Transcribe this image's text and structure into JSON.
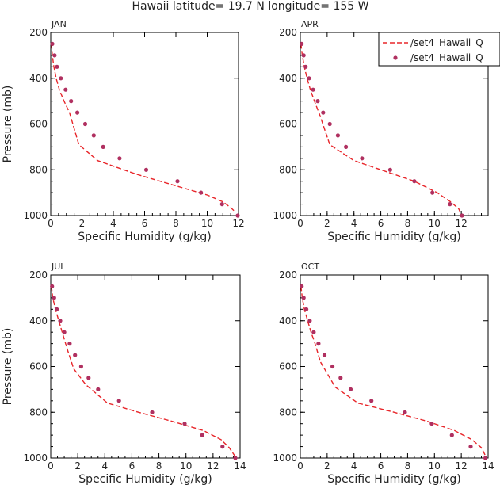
{
  "figure": {
    "title": "Hawaii  latitude= 19.7 N longitude= 155 W"
  },
  "legend": {
    "entries": [
      {
        "label": "/set4_Hawaii_Q_",
        "style": "dashed-line"
      },
      {
        "label": "/set4_Hawaii_Q_",
        "style": "dots"
      }
    ]
  },
  "colors": {
    "line": "#e8262a",
    "dots": "#b03060"
  },
  "chart_data": [
    {
      "type": "line",
      "title": "JAN",
      "xlabel": "Specific Humidity (g/kg)",
      "ylabel": "Pressure (mb)",
      "xlim": [
        0,
        12
      ],
      "ylim": [
        1000,
        200
      ],
      "xticks": [
        0,
        2,
        4,
        6,
        8,
        10,
        12
      ],
      "yticks": [
        200,
        400,
        600,
        800,
        1000
      ],
      "series": [
        {
          "name": "/set4_Hawaii_Q_",
          "kind": "line",
          "x": [
            0.05,
            0.1,
            0.2,
            0.35,
            0.55,
            0.85,
            1.2,
            1.8,
            3.0,
            5.5,
            8.0,
            10.0,
            11.0,
            11.5,
            11.8
          ],
          "y": [
            250,
            300,
            350,
            400,
            450,
            500,
            550,
            690,
            760,
            820,
            870,
            910,
            940,
            965,
            985
          ]
        },
        {
          "name": "/set4_Hawaii_Q_",
          "kind": "scatter",
          "x": [
            0.1,
            0.25,
            0.4,
            0.65,
            0.95,
            1.3,
            1.7,
            2.2,
            2.75,
            3.35,
            4.4,
            6.1,
            8.1,
            9.6,
            10.95,
            11.95
          ],
          "y": [
            250,
            300,
            350,
            400,
            450,
            500,
            550,
            600,
            650,
            700,
            750,
            800,
            850,
            900,
            950,
            1000
          ]
        }
      ]
    },
    {
      "type": "line",
      "title": "APR",
      "xlabel": "Specific Humidity (g/kg)",
      "ylabel": "Pressure (mb)",
      "xlim": [
        0,
        14
      ],
      "ylim": [
        1000,
        200
      ],
      "xticks": [
        0,
        2,
        4,
        6,
        8,
        10,
        12
      ],
      "yticks": [
        200,
        400,
        600,
        800,
        1000
      ],
      "series": [
        {
          "name": "/set4_Hawaii_Q_",
          "kind": "line",
          "x": [
            0.05,
            0.15,
            0.3,
            0.5,
            0.75,
            1.05,
            1.45,
            2.2,
            4.0,
            6.5,
            8.5,
            10.2,
            11.2,
            11.8,
            12.0
          ],
          "y": [
            250,
            300,
            350,
            400,
            450,
            500,
            560,
            690,
            760,
            810,
            850,
            900,
            940,
            970,
            995
          ]
        },
        {
          "name": "/set4_Hawaii_Q_",
          "kind": "scatter",
          "x": [
            0.1,
            0.25,
            0.4,
            0.65,
            0.95,
            1.3,
            1.7,
            2.2,
            2.8,
            3.4,
            4.6,
            6.7,
            8.5,
            9.85,
            11.15,
            12.05
          ],
          "y": [
            250,
            300,
            350,
            400,
            450,
            500,
            550,
            600,
            650,
            700,
            750,
            800,
            850,
            900,
            950,
            1000
          ]
        }
      ]
    },
    {
      "type": "line",
      "title": "JUL",
      "xlabel": "Specific Humidity (g/kg)",
      "ylabel": "Pressure (mb)",
      "xlim": [
        0,
        14
      ],
      "ylim": [
        1000,
        200
      ],
      "xticks": [
        0,
        2,
        4,
        6,
        8,
        10,
        12,
        14
      ],
      "yticks": [
        200,
        400,
        600,
        800,
        1000
      ],
      "series": [
        {
          "name": "/set4_Hawaii_Q_",
          "kind": "line",
          "x": [
            0.05,
            0.15,
            0.35,
            0.6,
            0.85,
            1.2,
            1.7,
            2.6,
            4.2,
            6.5,
            9.0,
            11.3,
            12.6,
            13.2,
            13.6
          ],
          "y": [
            250,
            300,
            350,
            400,
            450,
            520,
            610,
            680,
            760,
            800,
            840,
            880,
            920,
            955,
            990
          ]
        },
        {
          "name": "/set4_Hawaii_Q_",
          "kind": "scatter",
          "x": [
            0.1,
            0.25,
            0.45,
            0.7,
            1.0,
            1.4,
            1.8,
            2.25,
            2.8,
            3.5,
            5.05,
            7.5,
            9.9,
            11.2,
            12.7,
            13.65
          ],
          "y": [
            250,
            300,
            350,
            400,
            450,
            500,
            550,
            600,
            650,
            700,
            750,
            800,
            850,
            900,
            950,
            1000
          ]
        }
      ]
    },
    {
      "type": "line",
      "title": "OCT",
      "xlabel": "Specific Humidity (g/kg)",
      "ylabel": "Pressure (mb)",
      "xlim": [
        0,
        14
      ],
      "ylim": [
        1000,
        200
      ],
      "xticks": [
        0,
        2,
        4,
        6,
        8,
        10,
        12,
        14
      ],
      "yticks": [
        200,
        400,
        600,
        800,
        1000
      ],
      "series": [
        {
          "name": "/set4_Hawaii_Q_",
          "kind": "line",
          "x": [
            0.05,
            0.15,
            0.3,
            0.55,
            0.8,
            1.1,
            1.5,
            2.6,
            4.3,
            7.0,
            9.5,
            11.5,
            12.8,
            13.5,
            13.8
          ],
          "y": [
            250,
            300,
            350,
            400,
            450,
            500,
            580,
            690,
            760,
            800,
            840,
            880,
            920,
            955,
            990
          ]
        },
        {
          "name": "/set4_Hawaii_Q_",
          "kind": "scatter",
          "x": [
            0.1,
            0.25,
            0.45,
            0.7,
            1.0,
            1.35,
            1.8,
            2.4,
            3.0,
            3.75,
            5.3,
            7.8,
            9.8,
            11.3,
            12.7,
            13.8
          ],
          "y": [
            250,
            300,
            350,
            400,
            450,
            500,
            550,
            600,
            650,
            700,
            750,
            800,
            850,
            900,
            950,
            1000
          ]
        }
      ]
    }
  ]
}
